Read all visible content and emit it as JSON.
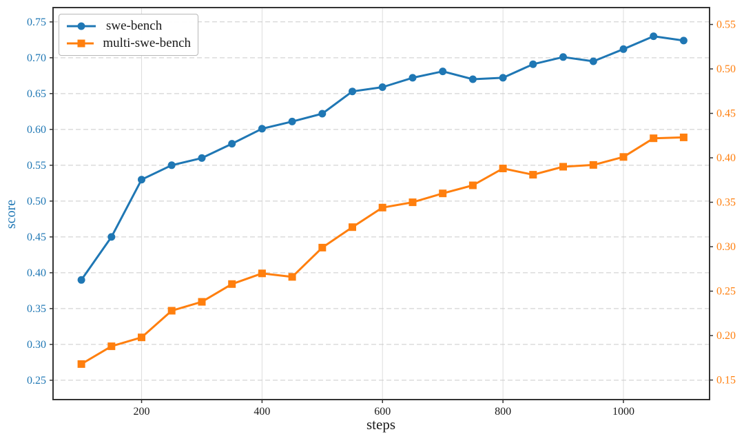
{
  "figure": {
    "background": "#ffffff",
    "frame_color": "#333333",
    "grid_h_color": "#c9c9c9",
    "grid_v_color": "#dddddd",
    "text_color": "#1a1a1a"
  },
  "chart_data": {
    "type": "line",
    "title": "",
    "xlabel": "steps",
    "ylabel": "score",
    "legend_position": "upper-left",
    "grid": true,
    "xlim": [
      53,
      1143
    ],
    "x_ticks": [
      200,
      400,
      600,
      800,
      1000
    ],
    "left_axis": {
      "color": "#1f77b4",
      "ticks": [
        0.25,
        0.3,
        0.35,
        0.4,
        0.45,
        0.5,
        0.55,
        0.6,
        0.65,
        0.7,
        0.75
      ],
      "lim": [
        0.223,
        0.77
      ]
    },
    "right_axis": {
      "color": "#ff7f0e",
      "ticks": [
        0.15,
        0.2,
        0.25,
        0.3,
        0.35,
        0.4,
        0.45,
        0.5,
        0.55
      ],
      "lim": [
        0.128,
        0.569
      ]
    },
    "x": [
      100,
      150,
      200,
      250,
      300,
      350,
      400,
      450,
      500,
      550,
      600,
      650,
      700,
      750,
      800,
      850,
      900,
      950,
      1000,
      1050,
      1100
    ],
    "series": [
      {
        "name": "swe-bench",
        "axis": "left",
        "color": "#1f77b4",
        "marker": "circle",
        "values": [
          0.39,
          0.45,
          0.53,
          0.55,
          0.56,
          0.58,
          0.601,
          0.611,
          0.622,
          0.653,
          0.659,
          0.672,
          0.681,
          0.67,
          0.672,
          0.691,
          0.701,
          0.695,
          0.712,
          0.73,
          0.724
        ]
      },
      {
        "name": "multi-swe-bench",
        "axis": "right",
        "color": "#ff7f0e",
        "marker": "square",
        "values": [
          0.168,
          0.188,
          0.198,
          0.228,
          0.238,
          0.258,
          0.27,
          0.266,
          0.299,
          0.322,
          0.344,
          0.35,
          0.36,
          0.369,
          0.388,
          0.381,
          0.39,
          0.392,
          0.401,
          0.422,
          0.423
        ]
      }
    ]
  }
}
